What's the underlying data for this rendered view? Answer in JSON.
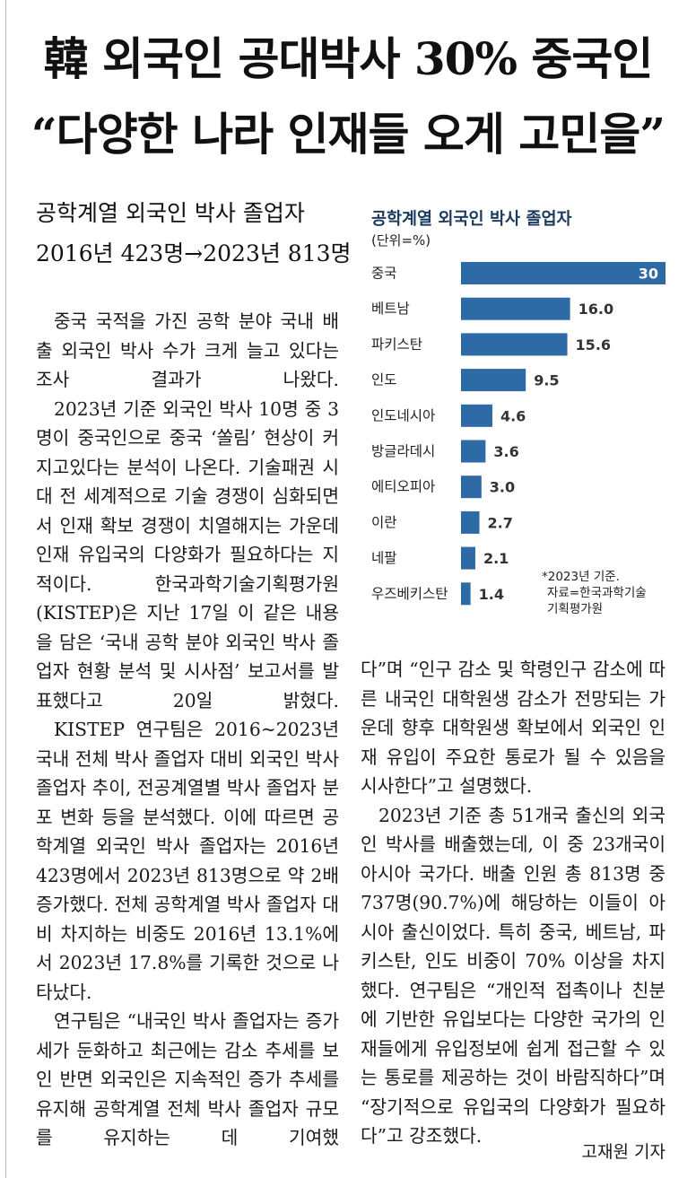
{
  "headline": {
    "line1": "韓 외국인 공대박사 30% 중국인",
    "line2": "“다양한 나라 인재들 오게 고민을”"
  },
  "subhead": {
    "line1": "공학계열 외국인 박사 졸업자",
    "line2": "2016년 423명→2023년 813명"
  },
  "chart": {
    "title": "공학계열 외국인 박사 졸업자",
    "unit": "(단위=%)",
    "note_line1": "*2023년 기준.",
    "note_line2": "자료=한국과학기술",
    "note_line3": "기획평가원",
    "bar_color": "#2e6aa6",
    "value_label_color": "#333333",
    "inside_label_color": "#ffffff"
  },
  "chart_data": {
    "type": "bar",
    "orientation": "horizontal",
    "title": "공학계열 외국인 박사 졸업자",
    "unit": "(단위=%)",
    "categories": [
      "중국",
      "베트남",
      "파키스탄",
      "인도",
      "인도네시아",
      "방글라데시",
      "에티오피아",
      "이란",
      "네팔",
      "우즈베키스탄"
    ],
    "values": [
      30,
      16.0,
      15.6,
      9.5,
      4.6,
      3.6,
      3.0,
      2.7,
      2.1,
      1.4
    ],
    "value_labels": [
      "30",
      "16.0",
      "15.6",
      "9.5",
      "4.6",
      "3.6",
      "3.0",
      "2.7",
      "2.1",
      "1.4"
    ],
    "xlim": [
      0,
      30
    ],
    "grid": false
  },
  "article": {
    "left_paragraphs": [
      "중국 국적을 가진 공학 분야 국내 배출 외국인 박사 수가 크게 늘고 있다는 조사 결과가 나왔다.",
      "2023년 기준 외국인 박사 10명 중 3명이 중국인으로 중국 ‘쏠림’ 현상이 커지고있다는 분석이 나온다. 기술패권 시대 전 세계적으로 기술 경쟁이 심화되면서 인재 확보 경쟁이 치열해지는 가운데 인재 유입국의 다양화가 필요하다는 지적이다. 한국과학기술기획평가원(KISTEP)은 지난 17일 이 같은 내용을 담은 ‘국내 공학 분야 외국인 박사 졸업자 현황 분석 및 시사점’ 보고서를 발표했다고 20일 밝혔다.",
      "KISTEP 연구팀은 2016~2023년 국내 전체 박사 졸업자 대비 외국인 박사 졸업자 추이, 전공계열별 박사 졸업자 분포 변화 등을 분석했다. 이에 따르면 공학계열 외국인 박사 졸업자는 2016년 423명에서 2023년 813명으로 약 2배 증가했다. 전체 공학계열 박사 졸업자 대비 차지하는 비중도 2016년 13.1%에서 2023년 17.8%를 기록한 것으로 나타났다.",
      "연구팀은 “내국인 박사 졸업자는 증가세가 둔화하고 최근에는 감소 추세를 보인 반면 외국인은 지속적인 증가 추세를 유지해 공학계열 전체 박사 졸업자 규모를 유지하는 데 기여했"
    ],
    "right_paragraphs": [
      "다”며 “인구 감소 및 학령인구 감소에 따른 내국인 대학원생 감소가 전망되는 가운데 향후 대학원생 확보에서 외국인 인재 유입이 주요한 통로가 될 수 있음을 시사한다”고 설명했다.",
      "2023년 기준 총 51개국 출신의 외국인 박사를 배출했는데, 이 중 23개국이 아시아 국가다. 배출 인원 총 813명 중 737명(90.7%)에 해당하는 이들이 아시아 출신이었다. 특히 중국, 베트남, 파키스탄, 인도 비중이 70% 이상을 차지했다. 연구팀은 “개인적 접촉이나 친분에 기반한 유입보다는 다양한 국가의 인재들에게 유입정보에 쉽게 접근할 수 있는 통로를 제공하는 것이 바람직하다”며 “장기적으로 유입국의 다양화가 필요하다”고 강조했다."
    ],
    "byline": "고재원 기자"
  }
}
